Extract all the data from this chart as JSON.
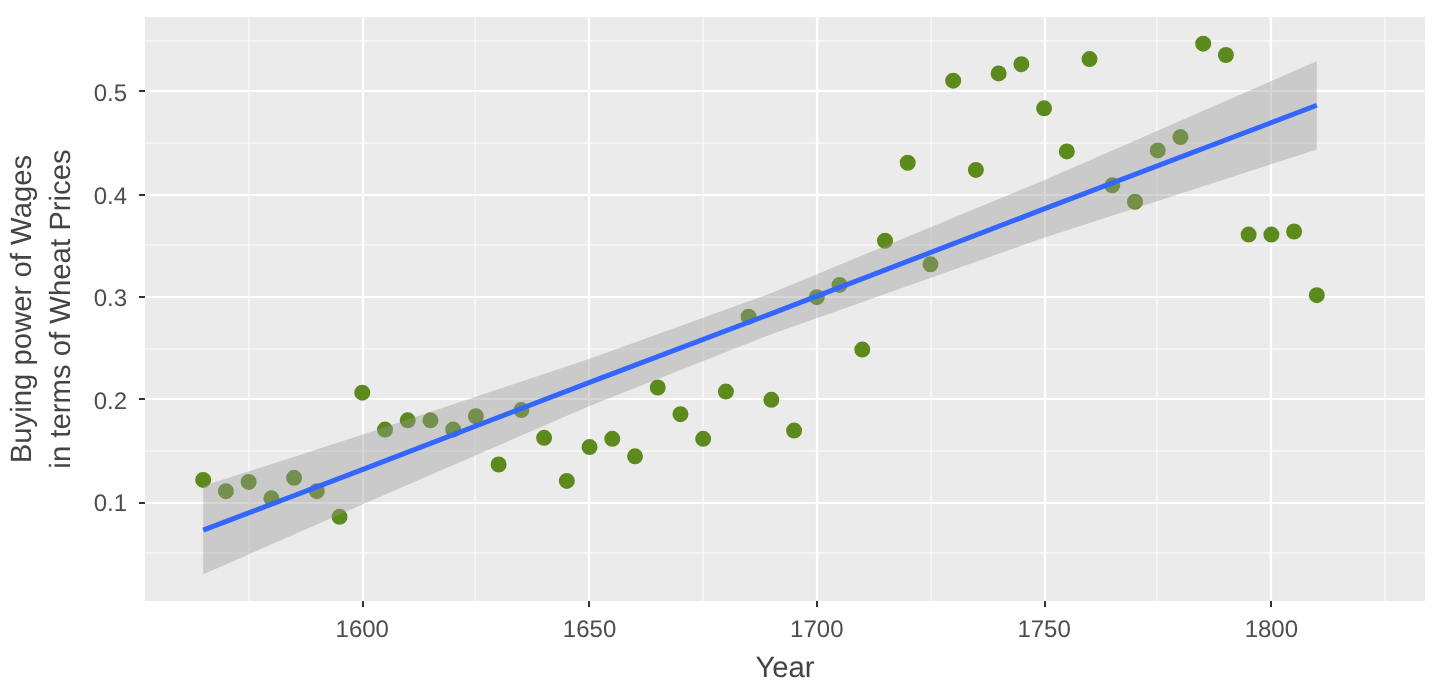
{
  "chart_data": {
    "type": "scatter",
    "xlabel": "Year",
    "ylabel": "Buying power of Wages\nin terms of Wheat Prices",
    "x": [
      1565,
      1570,
      1575,
      1580,
      1585,
      1590,
      1595,
      1600,
      1605,
      1610,
      1615,
      1620,
      1625,
      1630,
      1635,
      1640,
      1645,
      1650,
      1655,
      1660,
      1665,
      1670,
      1675,
      1680,
      1685,
      1690,
      1695,
      1700,
      1705,
      1710,
      1715,
      1720,
      1725,
      1730,
      1735,
      1740,
      1745,
      1750,
      1755,
      1760,
      1765,
      1770,
      1775,
      1780,
      1785,
      1790,
      1795,
      1800,
      1805,
      1810
    ],
    "series": [
      {
        "color": "#5d8a1c",
        "marker": "circle",
        "values": [
          0.122,
          0.111,
          0.12,
          0.104,
          0.124,
          0.111,
          0.086,
          0.207,
          0.171,
          0.18,
          0.18,
          0.171,
          0.184,
          0.137,
          0.19,
          0.163,
          0.121,
          0.154,
          0.162,
          0.145,
          0.212,
          0.186,
          0.162,
          0.208,
          0.281,
          0.2,
          0.17,
          0.3,
          0.312,
          0.249,
          0.355,
          0.431,
          0.332,
          0.511,
          0.424,
          0.518,
          0.527,
          0.484,
          0.442,
          0.532,
          0.409,
          0.393,
          0.443,
          0.456,
          0.547,
          0.536,
          0.361,
          0.361,
          0.364,
          0.302
        ]
      },
      {
        "type": "line",
        "color": "#3366ff",
        "x": [
          1565,
          1600,
          1650,
          1690,
          1750,
          1810
        ],
        "values": [
          0.073,
          0.132,
          0.217,
          0.284,
          0.386,
          0.487
        ],
        "lower": [
          0.03,
          0.098,
          0.194,
          0.264,
          0.358,
          0.444
        ],
        "upper": [
          0.116,
          0.166,
          0.24,
          0.304,
          0.414,
          0.53
        ]
      }
    ],
    "xlim": [
      1552.2,
      1833.8
    ],
    "ylim": [
      0.004,
      0.573
    ],
    "xticks": [
      1600,
      1650,
      1700,
      1750,
      1800
    ],
    "yticks": [
      0.1,
      0.2,
      0.3,
      0.4,
      0.5
    ],
    "grid": true,
    "line_style": "solid"
  }
}
